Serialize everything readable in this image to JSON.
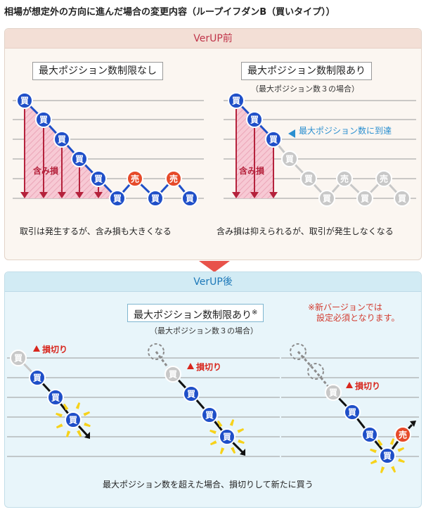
{
  "heading": "相場が想定外の方向に進んだ場合の変更内容（ループイフダンB（買いタイプ））",
  "before": {
    "title": "VerUP前",
    "left": {
      "label": "最大ポジション数制限なし",
      "loss_label": "含み損",
      "caption": "取引は発生するが、含み損も大きくなる"
    },
    "right": {
      "label": "最大ポジション数制限あり",
      "sub": "（最大ポジション数３の場合）",
      "reached_label": "最大ポジション数に到達",
      "loss_label": "含み損",
      "caption": "含み損は抑えられるが、取引が発生しなくなる"
    }
  },
  "after": {
    "title": "VerUP後",
    "label": "最大ポジション数制限あり",
    "label_mark": "※",
    "sub": "（最大ポジション数３の場合）",
    "note_line1": "※新バージョンでは",
    "note_line2": "設定必須となります。",
    "stoploss_label": "損切り",
    "caption": "最大ポジション数を超えた場合、損切りして新たに買う"
  },
  "node_labels": {
    "buy": "買",
    "sell": "売"
  },
  "colors": {
    "buy_blue": "#1f4fc8",
    "sell_red": "#e64a2a",
    "inactive_gray": "#c8c8c8",
    "loss_pink": "#f7c9d4",
    "arrow_crimson": "#b5223c",
    "reached_blue": "#2a8fd0",
    "stoploss_red": "#d8261d",
    "burst_yellow": "#f7d21a"
  }
}
